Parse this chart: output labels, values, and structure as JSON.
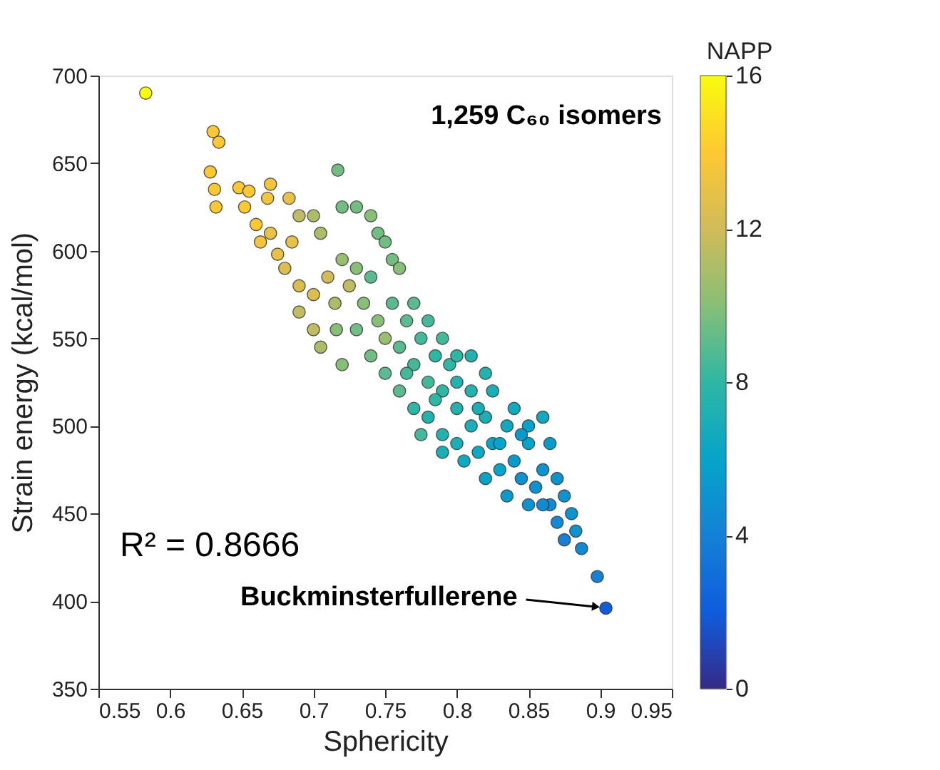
{
  "chart_data": {
    "type": "scatter",
    "xlabel": "Sphericity",
    "ylabel": "Strain energy (kcal/mol)",
    "clabel": "NAPP",
    "xlim": [
      0.55,
      0.95
    ],
    "xticks": [
      0.55,
      0.6,
      0.65,
      0.7,
      0.75,
      0.8,
      0.85,
      0.9,
      0.95
    ],
    "ylim": [
      350,
      700
    ],
    "yticks": [
      350,
      400,
      450,
      500,
      550,
      600,
      650,
      700
    ],
    "clim": [
      0,
      16
    ],
    "cticks": [
      0,
      4,
      8,
      12,
      16
    ],
    "marker": "circle",
    "grid": false,
    "annotations": [
      "1,259 C₆₀ isomers",
      "R² = 0.8666",
      {
        "text": "Buckminsterfullerene",
        "x": 0.904,
        "y": 396
      }
    ],
    "series": [
      {
        "x": [
          0.583,
          0.63,
          0.634,
          0.628,
          0.631,
          0.632,
          0.648,
          0.655,
          0.652,
          0.67,
          0.668,
          0.66,
          0.663,
          0.675,
          0.68,
          0.67,
          0.685,
          0.69,
          0.683,
          0.7,
          0.705,
          0.717,
          0.72,
          0.73,
          0.74,
          0.745,
          0.75,
          0.69,
          0.7,
          0.71,
          0.715,
          0.72,
          0.725,
          0.73,
          0.735,
          0.74,
          0.745,
          0.69,
          0.7,
          0.705,
          0.716,
          0.73,
          0.72,
          0.74,
          0.75,
          0.755,
          0.76,
          0.765,
          0.77,
          0.775,
          0.78,
          0.785,
          0.79,
          0.795,
          0.8,
          0.76,
          0.77,
          0.775,
          0.78,
          0.79,
          0.8,
          0.81,
          0.81,
          0.815,
          0.82,
          0.825,
          0.83,
          0.835,
          0.84,
          0.845,
          0.85,
          0.855,
          0.86,
          0.865,
          0.87,
          0.87,
          0.875,
          0.88,
          0.883,
          0.887,
          0.898,
          0.904,
          0.86,
          0.85,
          0.82,
          0.8,
          0.79,
          0.77,
          0.755,
          0.76,
          0.78,
          0.825,
          0.84,
          0.85,
          0.835,
          0.82,
          0.805,
          0.79,
          0.83,
          0.815,
          0.845,
          0.86,
          0.875,
          0.865,
          0.8,
          0.81,
          0.785,
          0.765,
          0.75
        ],
        "values": [
          690,
          668,
          662,
          645,
          635,
          625,
          636,
          634,
          625,
          638,
          630,
          615,
          605,
          598,
          590,
          610,
          605,
          620,
          630,
          620,
          610,
          646,
          625,
          625,
          620,
          610,
          605,
          580,
          575,
          585,
          570,
          595,
          580,
          590,
          570,
          585,
          560,
          565,
          555,
          545,
          555,
          555,
          535,
          540,
          550,
          570,
          545,
          560,
          535,
          550,
          525,
          540,
          520,
          535,
          510,
          520,
          510,
          495,
          505,
          495,
          490,
          500,
          520,
          485,
          505,
          490,
          475,
          500,
          480,
          470,
          490,
          465,
          475,
          455,
          470,
          445,
          435,
          450,
          440,
          430,
          414,
          396,
          505,
          500,
          530,
          540,
          550,
          570,
          595,
          590,
          560,
          520,
          510,
          455,
          460,
          470,
          480,
          485,
          490,
          510,
          495,
          455,
          460,
          490,
          525,
          540,
          515,
          530,
          530
        ],
        "cvalues": [
          16,
          14,
          14,
          14,
          14,
          14,
          14,
          14,
          14,
          13.5,
          13.5,
          14,
          13.5,
          13,
          12.5,
          13,
          13,
          11.5,
          13,
          11,
          11,
          9.5,
          9.5,
          9.5,
          10,
          9.5,
          9.5,
          12.5,
          12.5,
          12,
          11,
          10.5,
          11.5,
          10,
          10,
          9,
          10,
          11.5,
          11.5,
          11,
          10,
          9.5,
          10,
          9.5,
          10.5,
          9,
          9,
          9,
          8.5,
          8.5,
          8.5,
          8,
          8,
          8,
          7.5,
          9,
          8,
          8.5,
          7.5,
          7.5,
          7,
          7,
          7.5,
          6.5,
          7,
          6,
          6,
          6.5,
          5.5,
          5,
          6,
          5,
          5,
          4.5,
          5,
          4.5,
          4,
          5,
          5,
          4.5,
          4,
          2,
          6.5,
          6,
          7.5,
          8,
          8.5,
          9,
          9.5,
          10,
          8.5,
          7,
          6.5,
          5,
          5.5,
          6,
          6.5,
          7,
          6,
          7,
          5.5,
          4.5,
          5,
          5.5,
          7.5,
          7.5,
          8,
          8.5,
          9
        ]
      }
    ]
  }
}
